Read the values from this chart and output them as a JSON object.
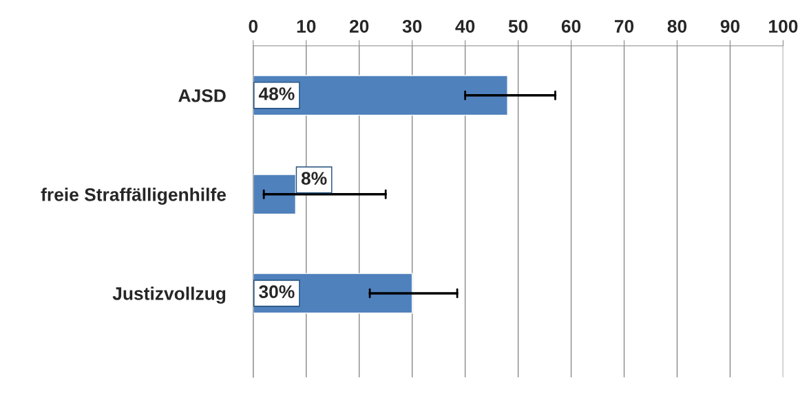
{
  "chart_data": {
    "type": "bar",
    "orientation": "horizontal",
    "categories": [
      "AJSD",
      "freie Straffälligenhilfe",
      "Justizvollzug"
    ],
    "values": [
      48,
      8,
      30
    ],
    "errors": [
      [
        40,
        57
      ],
      [
        2,
        25
      ],
      [
        22,
        38.5
      ]
    ],
    "value_labels": [
      "48%",
      "8%",
      "30%"
    ],
    "color": "#4f81bd",
    "xlim": [
      0,
      100
    ],
    "xticks": [
      0,
      10,
      20,
      30,
      40,
      50,
      60,
      70,
      80,
      90,
      100
    ],
    "grid": "x",
    "legend": false
  }
}
